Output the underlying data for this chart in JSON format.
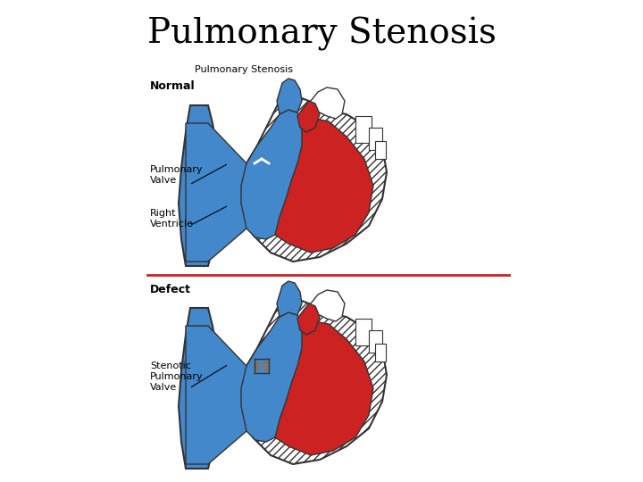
{
  "title": "Pulmonary Stenosis",
  "subtitle": "Pulmonary Stenosis",
  "label_normal": "Normal",
  "label_defect": "Defect",
  "label_pulmonary_valve": "Pulmonary\nValve",
  "label_right_ventricle": "Right\nVentricle",
  "label_stenotic": "Stenotic\nPulmonary\nValve",
  "bg_color": "#ffffff",
  "title_fontsize": 28,
  "title_font": "serif",
  "subtitle_fontsize": 8,
  "annot_fontsize": 8,
  "divider_color": "#cc2222",
  "blue_color": "#4488cc",
  "red_color": "#cc2222",
  "outline_color": "#333333",
  "hatch_color": "#888888"
}
